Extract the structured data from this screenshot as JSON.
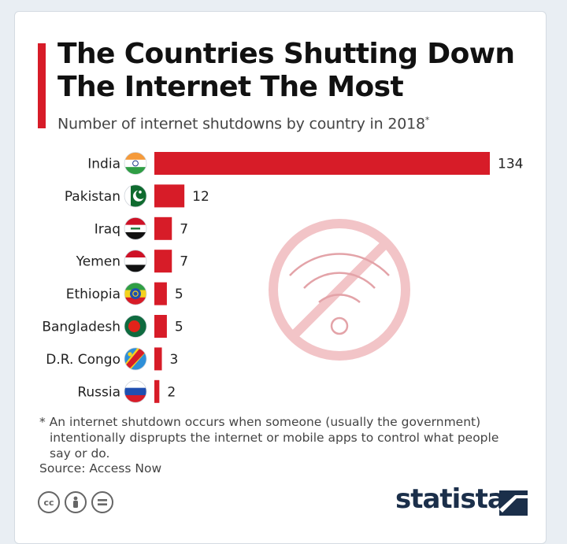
{
  "header": {
    "title_line1": "The Countries Shutting Down",
    "title_line2": "The Internet The Most",
    "subtitle": "Number of internet shutdowns by country in 2018",
    "subtitle_mark": "*"
  },
  "chart_data": {
    "type": "bar",
    "orientation": "horizontal",
    "title": "The Countries Shutting Down The Internet The Most",
    "subtitle": "Number of internet shutdowns by country in 2018*",
    "categories": [
      "India",
      "Pakistan",
      "Iraq",
      "Yemen",
      "Ethiopia",
      "Bangladesh",
      "D.R. Congo",
      "Russia"
    ],
    "values": [
      134,
      12,
      7,
      7,
      5,
      5,
      3,
      2
    ],
    "xlabel": "",
    "ylabel": "",
    "xlim": [
      0,
      134
    ],
    "bar_color": "#d71c28"
  },
  "flags": [
    "india-flag-icon",
    "pakistan-flag-icon",
    "iraq-flag-icon",
    "yemen-flag-icon",
    "ethiopia-flag-icon",
    "bangladesh-flag-icon",
    "dr-congo-flag-icon",
    "russia-flag-icon"
  ],
  "footer": {
    "note_line1": "* An internet shutdown occurs when someone (usually the government)",
    "note_line2": "intentionally disprupts the internet or mobile apps to control what people say or do.",
    "source": "Source: Access Now",
    "brand": "statista",
    "license_icons": [
      "cc-icon",
      "by-icon",
      "nd-icon"
    ]
  },
  "colors": {
    "accent": "#d71c28",
    "text": "#111111",
    "brand": "#1b2f4a",
    "watermark": "#f2c4c7"
  }
}
